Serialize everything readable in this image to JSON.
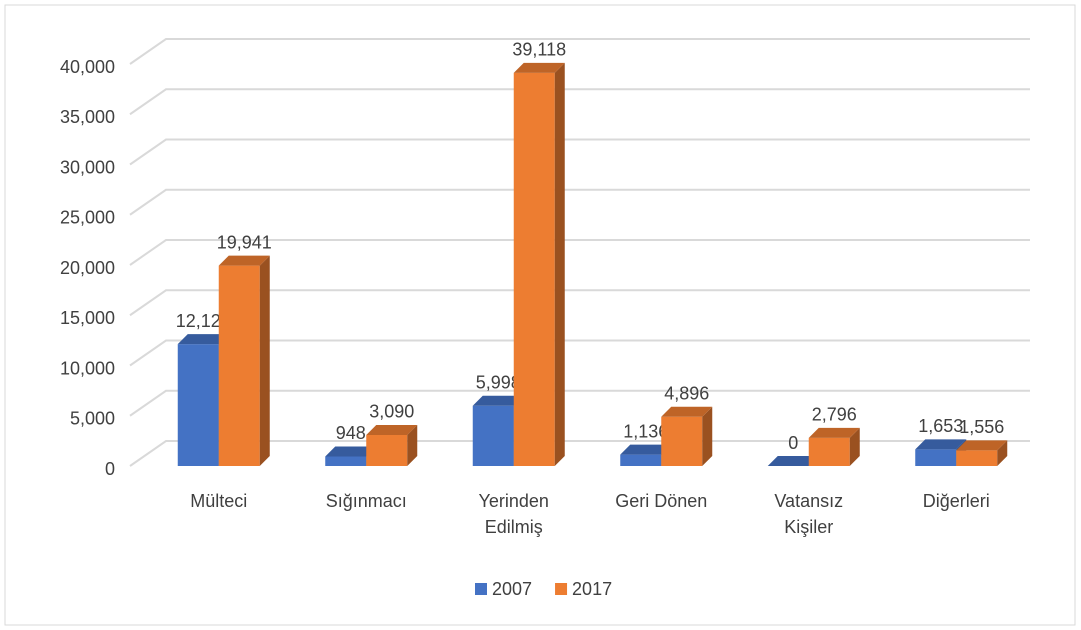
{
  "chart_data": {
    "type": "bar3d",
    "categories": [
      "Mülteci",
      "Sığınmacı",
      "Yerinden Edilmiş",
      "Geri Dönen",
      "Vatansız Kişiler",
      "Diğerleri"
    ],
    "series": [
      {
        "name": "2007",
        "color": "#4472c4",
        "values": [
          12129,
          948,
          5998,
          1136,
          0,
          1653
        ],
        "value_labels": [
          "12,129",
          "948",
          "5,998",
          "1,136",
          "0",
          "1,653"
        ]
      },
      {
        "name": "2017",
        "color": "#ed7d31",
        "values": [
          19941,
          3090,
          39118,
          4896,
          2796,
          1556
        ],
        "value_labels": [
          "19,941",
          "3,090",
          "39,118",
          "4,896",
          "2,796",
          "1,556"
        ]
      }
    ],
    "ylim": [
      0,
      40000
    ],
    "yticks": [
      0,
      {
        "value": 5000,
        "label": "5,000"
      },
      {
        "value": 10000,
        "label": "10,000"
      },
      {
        "value": 15000,
        "label": "15,000"
      },
      {
        "value": 20000,
        "label": "20,000"
      },
      {
        "value": 25000,
        "label": "25,000"
      },
      {
        "value": 30000,
        "label": "30,000"
      },
      {
        "value": 35000,
        "label": "35,000"
      },
      {
        "value": 40000,
        "label": "40,000"
      }
    ],
    "grid": true,
    "legend": "bottom"
  }
}
